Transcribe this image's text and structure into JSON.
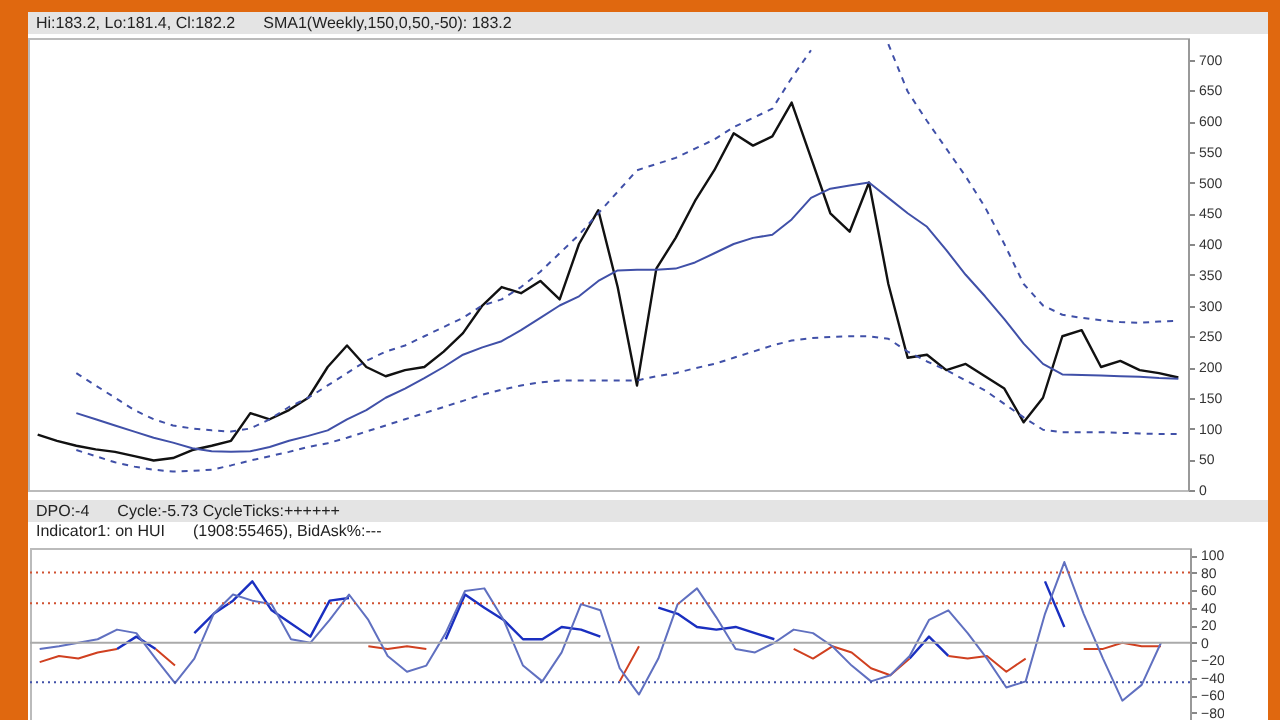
{
  "chart_data": [
    {
      "type": "line",
      "categories": [
        null,
        null,
        null,
        null,
        null,
        null,
        null,
        null,
        null,
        null,
        null,
        null,
        null,
        null,
        null,
        null,
        null,
        null,
        null,
        null,
        null,
        null,
        null,
        null,
        null,
        null,
        null,
        null,
        null,
        null,
        null,
        null,
        null,
        null,
        null,
        null,
        null,
        null,
        null,
        null,
        null,
        null,
        null,
        null,
        null,
        null,
        null,
        null,
        null,
        null,
        null,
        null,
        null,
        null,
        null,
        null,
        null,
        null,
        null,
        null
      ],
      "annotations": [
        "Hi:183.2, Lo:181.4, Cl:182.2",
        "SMA1(Weekly,150,0,50,-50): 183.2"
      ],
      "ylim": [
        0,
        735
      ],
      "yticks": [
        0,
        50,
        100,
        150,
        200,
        250,
        300,
        350,
        400,
        450,
        500,
        550,
        600,
        650,
        700
      ],
      "tick_labels": "y",
      "grid": false,
      "series": [
        {
          "color": "#111111",
          "line_style": "solid",
          "values": [
            90,
            80,
            72,
            66,
            62,
            55,
            48,
            52,
            65,
            72,
            80,
            125,
            115,
            130,
            150,
            200,
            235,
            200,
            185,
            195,
            200,
            225,
            255,
            300,
            330,
            320,
            340,
            310,
            400,
            455,
            330,
            170,
            360,
            410,
            470,
            520,
            580,
            560,
            575,
            630,
            540,
            450,
            420,
            500,
            335,
            215,
            220,
            195,
            205,
            185,
            165,
            110,
            150,
            250,
            260,
            200,
            210,
            195,
            190,
            183
          ]
        },
        {
          "color": "#4050a8",
          "line_style": "solid",
          "values": [
            null,
            null,
            125,
            115,
            105,
            95,
            85,
            77,
            68,
            63,
            62,
            63,
            70,
            80,
            88,
            97,
            115,
            130,
            150,
            165,
            182,
            200,
            220,
            232,
            242,
            260,
            280,
            300,
            315,
            340,
            357,
            358,
            358,
            360,
            370,
            385,
            400,
            410,
            415,
            440,
            475,
            490,
            495,
            500,
            475,
            450,
            428,
            390,
            350,
            315,
            278,
            238,
            205,
            188,
            187,
            186,
            185,
            184,
            182,
            181
          ]
        },
        {
          "color": "#4050a8",
          "line_style": "dashed",
          "values": [
            null,
            null,
            190,
            170,
            150,
            130,
            115,
            105,
            100,
            97,
            95,
            100,
            115,
            135,
            150,
            170,
            190,
            210,
            225,
            235,
            250,
            265,
            280,
            300,
            310,
            330,
            355,
            385,
            415,
            450,
            485,
            520,
            530,
            540,
            555,
            570,
            590,
            605,
            620,
            670,
            715,
            null,
            null,
            null,
            725,
            648,
            600,
            555,
            510,
            460,
            400,
            335,
            300,
            285,
            280,
            276,
            273,
            272,
            274,
            275
          ]
        },
        {
          "color": "#4050a8",
          "line_style": "dashed",
          "values": [
            null,
            null,
            65,
            55,
            45,
            38,
            33,
            30,
            31,
            33,
            40,
            48,
            55,
            62,
            70,
            76,
            85,
            95,
            105,
            115,
            125,
            135,
            145,
            155,
            163,
            170,
            175,
            178,
            178,
            178,
            178,
            178,
            185,
            190,
            198,
            205,
            215,
            225,
            235,
            243,
            247,
            249,
            250,
            250,
            246,
            225,
            209,
            195,
            178,
            162,
            140,
            118,
            98,
            94,
            94,
            94,
            93,
            92,
            91,
            91
          ]
        }
      ]
    },
    {
      "type": "line",
      "categories": [
        null,
        null,
        null,
        null,
        null,
        null,
        null,
        null,
        null,
        null,
        null,
        null,
        null,
        null,
        null,
        null,
        null,
        null,
        null,
        null,
        null,
        null,
        null,
        null,
        null,
        null,
        null,
        null,
        null,
        null,
        null,
        null,
        null,
        null,
        null,
        null,
        null,
        null,
        null,
        null,
        null,
        null,
        null,
        null,
        null,
        null,
        null,
        null,
        null,
        null,
        null,
        null,
        null,
        null,
        null,
        null,
        null,
        null,
        null,
        null
      ],
      "annotations": [
        "DPO:-4",
        "Cycle:-5.73 CycleTicks:++++++",
        "Indicator1: on HUI",
        "(1908:55465), BidAsk%:---"
      ],
      "ylim": [
        -88,
        108
      ],
      "yticks": [
        -80,
        -60,
        -40,
        -20,
        0,
        20,
        40,
        60,
        80,
        100
      ],
      "tick_labels": "y",
      "grid": false,
      "ref_lines": [
        {
          "axis": "y",
          "value": 80,
          "color": "#d05030",
          "line_style": "dotted"
        },
        {
          "axis": "y",
          "value": 45,
          "color": "#d05030",
          "line_style": "dotted"
        },
        {
          "axis": "y",
          "value": 0,
          "color": "#aaaaaa",
          "line_style": "solid"
        },
        {
          "axis": "y",
          "value": -45,
          "color": "#4050a8",
          "line_style": "dotted"
        }
      ],
      "series": [
        {
          "color": "#1a2fc0",
          "line_style": "solid",
          "values": [
            null,
            null,
            null,
            null,
            -7,
            7,
            -7,
            null,
            11,
            33,
            48,
            70,
            37,
            22,
            7,
            48,
            51,
            null,
            null,
            null,
            null,
            4,
            55,
            40,
            26,
            4,
            4,
            18,
            15,
            7,
            null,
            null,
            40,
            33,
            18,
            15,
            18,
            11,
            4,
            null,
            null,
            null,
            null,
            null,
            null,
            -18,
            7,
            -15,
            null,
            null,
            null,
            null,
            70,
            18,
            null,
            null,
            null,
            null,
            null,
            null
          ]
        },
        {
          "color": "#d04020",
          "line_style": "solid",
          "values": [
            -22,
            -15,
            -18,
            -11,
            -7,
            null,
            -7,
            -26,
            null,
            null,
            null,
            null,
            null,
            null,
            null,
            null,
            null,
            -4,
            -7,
            -4,
            -7,
            null,
            null,
            null,
            null,
            null,
            null,
            null,
            null,
            null,
            -44,
            -4,
            null,
            null,
            null,
            null,
            null,
            null,
            null,
            -7,
            -18,
            -4,
            -11,
            -29,
            -37,
            -18,
            null,
            -15,
            -18,
            -15,
            -33,
            -18,
            null,
            null,
            -7,
            -7,
            0,
            -4,
            -4,
            null
          ]
        },
        {
          "color": "#6070c0",
          "line_style": "solid",
          "values": [
            -7,
            -4,
            0,
            4,
            15,
            11,
            -18,
            -46,
            -18,
            33,
            55,
            48,
            44,
            4,
            0,
            26,
            55,
            26,
            -15,
            -33,
            -26,
            11,
            59,
            62,
            26,
            -26,
            -44,
            -11,
            44,
            37,
            -29,
            -59,
            -18,
            44,
            62,
            29,
            -7,
            -11,
            0,
            15,
            11,
            -4,
            -26,
            -44,
            -37,
            -15,
            26,
            37,
            11,
            -18,
            -51,
            -44,
            33,
            92,
            33,
            -18,
            -66,
            -48,
            0,
            null
          ]
        }
      ]
    }
  ]
}
